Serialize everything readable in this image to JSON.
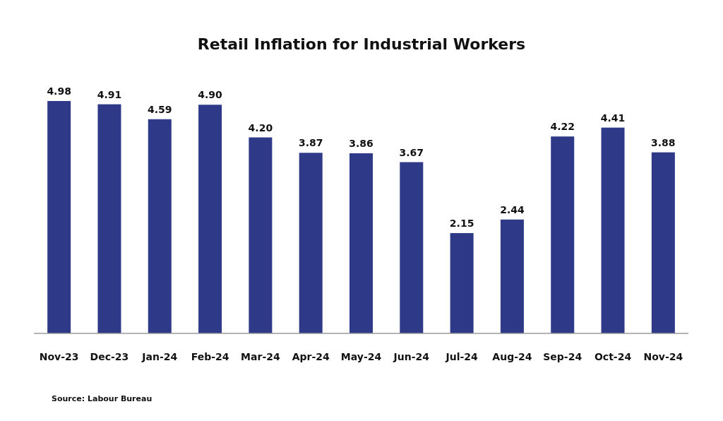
{
  "chart_data": {
    "type": "bar",
    "title": "Retail Inflation for Industrial Workers",
    "categories": [
      "Nov-23",
      "Dec-23",
      "Jan-24",
      "Feb-24",
      "Mar-24",
      "Apr-24",
      "May-24",
      "Jun-24",
      "Jul-24",
      "Aug-24",
      "Sep-24",
      "Oct-24",
      "Nov-24"
    ],
    "values": [
      4.98,
      4.91,
      4.59,
      4.9,
      4.2,
      3.87,
      3.86,
      3.67,
      2.15,
      2.44,
      4.22,
      4.41,
      3.88
    ],
    "value_labels": [
      "4.98",
      "4.91",
      "4.59",
      "4.90",
      "4.20",
      "3.87",
      "3.86",
      "3.67",
      "2.15",
      "2.44",
      "4.22",
      "4.41",
      "3.88"
    ],
    "color": "#2e3a87",
    "annotations": [
      "Source: Labour Bureau"
    ]
  }
}
